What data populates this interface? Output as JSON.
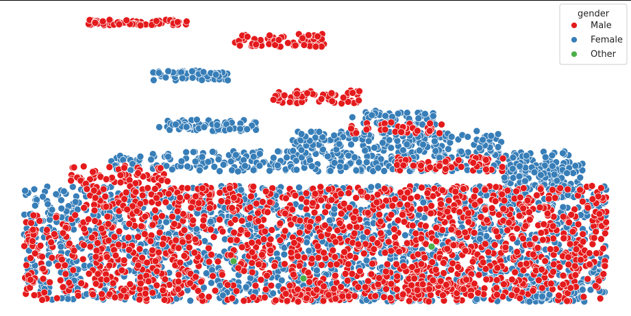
{
  "chart_data": {
    "type": "scatter",
    "title": "",
    "xlabel": "",
    "ylabel": "",
    "axes_visible": false,
    "legend": {
      "title": "gender",
      "placement": "top-right",
      "entries": [
        {
          "name": "Male",
          "color": "#e41a1c"
        },
        {
          "name": "Female",
          "color": "#377eb8"
        },
        {
          "name": "Other",
          "color": "#4daf4a"
        }
      ]
    },
    "xlim": [
      0,
      100
    ],
    "ylim": [
      0,
      100
    ],
    "series": [
      {
        "name": "Male",
        "color": "#e41a1c",
        "clusters": [
          {
            "x": [
              11,
              28
            ],
            "y": [
              95.5,
              97.5
            ],
            "n": 70
          },
          {
            "x": [
              36,
              52
            ],
            "y": [
              88,
              92.5
            ],
            "n": 70
          },
          {
            "x": [
              42,
              58
            ],
            "y": [
              68.5,
              73
            ],
            "n": 60
          },
          {
            "x": [
              56,
              72
            ],
            "y": [
              58,
              62
            ],
            "n": 40
          },
          {
            "x": [
              44,
              56
            ],
            "y": [
              0.5,
              4
            ],
            "n": 60
          },
          {
            "x": [
              8,
              25
            ],
            "y": [
              40,
              47
            ],
            "n": 60
          },
          {
            "x": [
              0,
              100
            ],
            "y": [
              0,
              30
            ],
            "n": 1100
          },
          {
            "x": [
              10,
              100
            ],
            "y": [
              30,
              40
            ],
            "n": 400
          },
          {
            "x": [
              64,
              84
            ],
            "y": [
              45,
              50
            ],
            "n": 60
          },
          {
            "x": [
              65,
              78
            ],
            "y": [
              2,
              8
            ],
            "n": 70
          }
        ]
      },
      {
        "name": "Female",
        "color": "#377eb8",
        "clusters": [
          {
            "x": [
              22,
              35
            ],
            "y": [
              76.5,
              80
            ],
            "n": 60
          },
          {
            "x": [
              23,
              40
            ],
            "y": [
              59,
              63
            ],
            "n": 70
          },
          {
            "x": [
              56,
              71
            ],
            "y": [
              61,
              66
            ],
            "n": 60
          },
          {
            "x": [
              15,
              94
            ],
            "y": [
              45,
              52
            ],
            "n": 350
          },
          {
            "x": [
              82,
              96
            ],
            "y": [
              36,
              48
            ],
            "n": 120
          },
          {
            "x": [
              0,
              100
            ],
            "y": [
              0,
              40
            ],
            "n": 1800
          },
          {
            "x": [
              46,
              82
            ],
            "y": [
              52,
              59
            ],
            "n": 180
          },
          {
            "x": [
              86,
              96
            ],
            "y": [
              0,
              6
            ],
            "n": 60
          }
        ]
      },
      {
        "name": "Other",
        "color": "#4daf4a",
        "points": [
          [
            36,
            14
          ],
          [
            48,
            8
          ],
          [
            70,
            19
          ]
        ]
      }
    ]
  }
}
